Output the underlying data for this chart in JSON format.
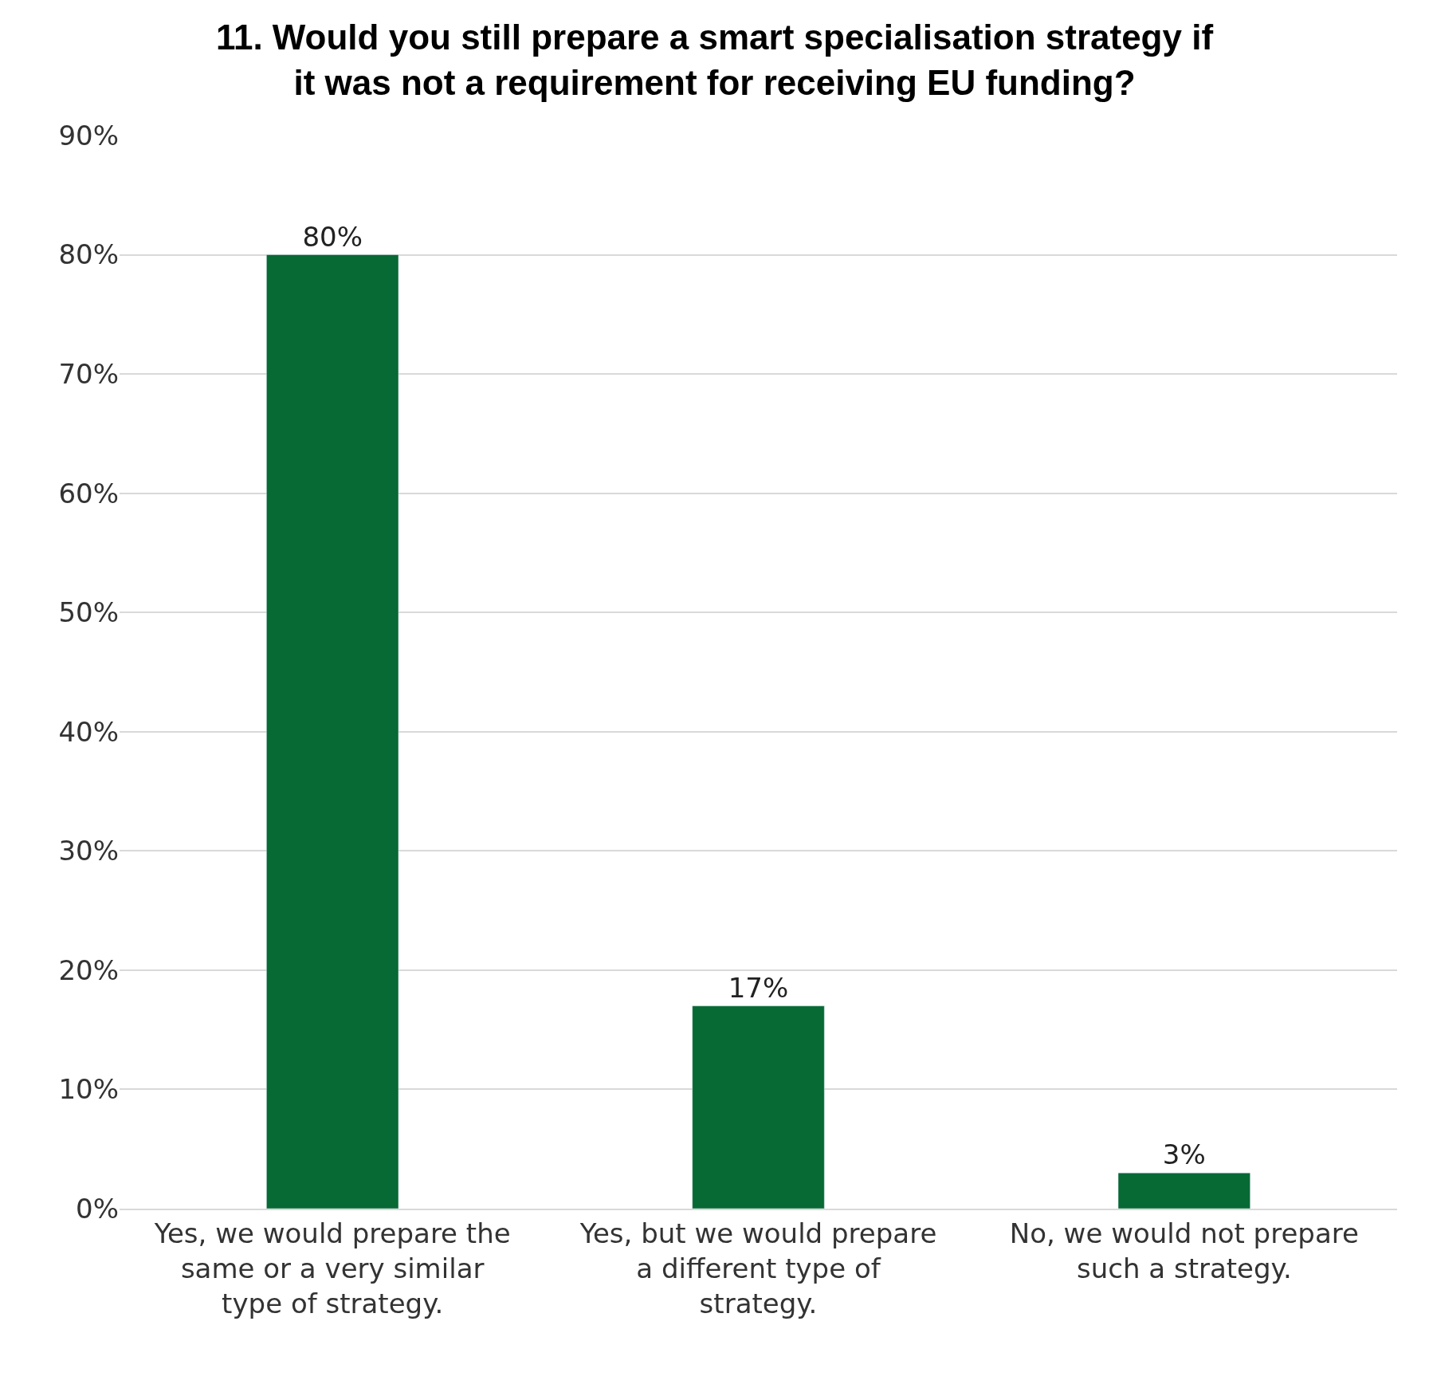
{
  "chart_data": {
    "type": "bar",
    "title": "11. Would you still prepare a smart specialisation strategy if it was not a requirement for receiving EU funding?",
    "categories": [
      "Yes, we would prepare the same or a very similar type of strategy.",
      "Yes, but we would prepare a different type of strategy.",
      "No, we would not prepare such a strategy."
    ],
    "values": [
      80,
      17,
      3
    ],
    "value_labels": [
      "80%",
      "17%",
      "3%"
    ],
    "color": "#076934",
    "ylim": [
      0,
      90
    ],
    "yticks": [
      {
        "value": 0,
        "label": "0%"
      },
      {
        "value": 10,
        "label": "10%"
      },
      {
        "value": 20,
        "label": "20%"
      },
      {
        "value": 30,
        "label": "30%"
      },
      {
        "value": 40,
        "label": "40%"
      },
      {
        "value": 50,
        "label": "50%"
      },
      {
        "value": 60,
        "label": "60%"
      },
      {
        "value": 70,
        "label": "70%"
      },
      {
        "value": 80,
        "label": "80%"
      },
      {
        "value": 90,
        "label": "90%"
      }
    ],
    "grid": "y",
    "legend": false
  }
}
